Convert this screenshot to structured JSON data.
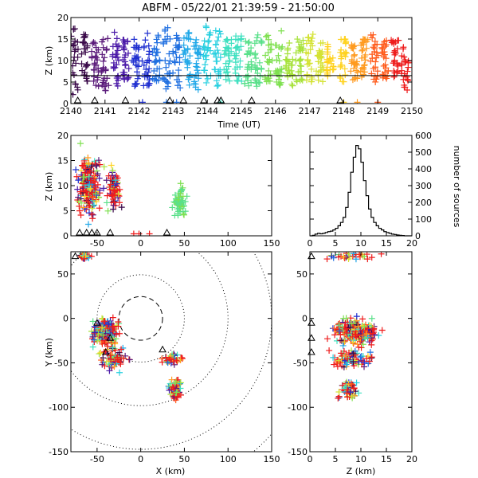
{
  "title": "ABFM - 05/22/01 21:39:59 - 21:50:00",
  "colors": {
    "sequence": [
      "#3b0a4a",
      "#5a1a7a",
      "#4b1aa8",
      "#1f2fd0",
      "#1f6fe0",
      "#21a8e8",
      "#2ad0e0",
      "#3fe0c0",
      "#5ae08a",
      "#7fe050",
      "#a6e23a",
      "#d4e233",
      "#ffd21f",
      "#ff9a1f",
      "#ff5a1a",
      "#ee1c1c"
    ],
    "axis": "#000000",
    "rings": "#000000"
  },
  "chart_data": [
    {
      "id": "time_height",
      "type": "scatter",
      "xlabel": "Time (UT)",
      "ylabel": "Z (km)",
      "xlim": [
        2140,
        2150
      ],
      "ylim": [
        0,
        20
      ],
      "xticks": [
        "2140",
        "2141",
        "2142",
        "2143",
        "2144",
        "2145",
        "2146",
        "2147",
        "2148",
        "2149",
        "2150"
      ],
      "yticks": [
        "0",
        "5",
        "10",
        "15",
        "20"
      ],
      "reference_line_z": 6.5,
      "stations_x": [
        2140.2,
        2140.7,
        2141.6,
        2142.9,
        2143.3,
        2143.9,
        2144.3,
        2144.4,
        2145.3,
        2147.9
      ],
      "columns": [
        {
          "t": 2140.1,
          "zmin": 2,
          "zmax": 18
        },
        {
          "t": 2140.4,
          "zmin": 4,
          "zmax": 17
        },
        {
          "t": 2140.7,
          "zmin": 4,
          "zmax": 15
        },
        {
          "t": 2141.0,
          "zmin": 3,
          "zmax": 16
        },
        {
          "t": 2141.3,
          "zmin": 4,
          "zmax": 17
        },
        {
          "t": 2141.6,
          "zmin": 5,
          "zmax": 16
        },
        {
          "t": 2141.9,
          "zmin": 4,
          "zmax": 15
        },
        {
          "t": 2142.2,
          "zmin": 4,
          "zmax": 17
        },
        {
          "t": 2142.5,
          "zmin": 5,
          "zmax": 16
        },
        {
          "t": 2142.8,
          "zmin": 3,
          "zmax": 18
        },
        {
          "t": 2143.1,
          "zmin": 3,
          "zmax": 16
        },
        {
          "t": 2143.4,
          "zmin": 4,
          "zmax": 17
        },
        {
          "t": 2143.7,
          "zmin": 3,
          "zmax": 15
        },
        {
          "t": 2144.0,
          "zmin": 4,
          "zmax": 18
        },
        {
          "t": 2144.3,
          "zmin": 4,
          "zmax": 17
        },
        {
          "t": 2144.6,
          "zmin": 5,
          "zmax": 15
        },
        {
          "t": 2144.9,
          "zmin": 5,
          "zmax": 16
        },
        {
          "t": 2145.2,
          "zmin": 4,
          "zmax": 15
        },
        {
          "t": 2145.5,
          "zmin": 4,
          "zmax": 17
        },
        {
          "t": 2145.8,
          "zmin": 5,
          "zmax": 16
        },
        {
          "t": 2146.1,
          "zmin": 4,
          "zmax": 17
        },
        {
          "t": 2146.4,
          "zmin": 4,
          "zmax": 15
        },
        {
          "t": 2146.7,
          "zmin": 5,
          "zmax": 15
        },
        {
          "t": 2147.0,
          "zmin": 5,
          "zmax": 17
        },
        {
          "t": 2147.3,
          "zmin": 5,
          "zmax": 15
        },
        {
          "t": 2147.6,
          "zmin": 6,
          "zmax": 14
        },
        {
          "t": 2148.0,
          "zmin": 5,
          "zmax": 15
        },
        {
          "t": 2148.3,
          "zmin": 5,
          "zmax": 14
        },
        {
          "t": 2148.6,
          "zmin": 6,
          "zmax": 15
        },
        {
          "t": 2148.9,
          "zmin": 5,
          "zmax": 16
        },
        {
          "t": 2149.2,
          "zmin": 5,
          "zmax": 15
        },
        {
          "t": 2149.5,
          "zmin": 6,
          "zmax": 15
        },
        {
          "t": 2149.8,
          "zmin": 3,
          "zmax": 14
        }
      ],
      "ground_t": [
        2142.1,
        2142.8,
        2143.1,
        2144.4,
        2148.0,
        2148.4,
        2149.0
      ]
    },
    {
      "id": "x_height",
      "type": "scatter",
      "ylabel": "Z (km)",
      "xlim": [
        -80,
        150
      ],
      "ylim": [
        0,
        20
      ],
      "xticks": [
        "-50",
        "0",
        "50",
        "100",
        "150"
      ],
      "yticks": [
        "0",
        "5",
        "10",
        "15",
        "20"
      ],
      "stations_x": [
        -70,
        -62,
        -56,
        -50,
        -35,
        30
      ],
      "clusters": [
        {
          "x": -60,
          "z": 10,
          "sx": 10,
          "sz": 4,
          "n": 200,
          "hue": "mixed"
        },
        {
          "x": -30,
          "z": 9,
          "sx": 6,
          "sz": 3,
          "n": 80,
          "hue": "mixed"
        },
        {
          "x": 45,
          "z": 7,
          "sx": 6,
          "sz": 2,
          "n": 60,
          "hue": "green"
        }
      ],
      "ground_x": [
        -2,
        10,
        -8
      ]
    },
    {
      "id": "histogram",
      "type": "bar",
      "ylabel": "number of sources",
      "xlim": [
        0,
        20
      ],
      "ylim": [
        0,
        600
      ],
      "xticks": [
        "0",
        "5",
        "10",
        "15",
        "20"
      ],
      "yticks": [
        "0",
        "100",
        "200",
        "300",
        "400",
        "500",
        "600"
      ],
      "bin_width": 0.5,
      "bins_start": [
        0,
        0.5,
        1,
        1.5,
        2,
        2.5,
        3,
        3.5,
        4,
        4.5,
        5,
        5.5,
        6,
        6.5,
        7,
        7.5,
        8,
        8.5,
        9,
        9.5,
        10,
        10.5,
        11,
        11.5,
        12,
        12.5,
        13,
        13.5,
        14,
        14.5,
        15,
        15.5,
        16,
        16.5,
        17,
        17.5,
        18,
        18.5,
        19,
        19.5
      ],
      "values": [
        0,
        3,
        10,
        15,
        12,
        15,
        20,
        25,
        28,
        35,
        45,
        60,
        80,
        110,
        170,
        260,
        380,
        470,
        540,
        520,
        440,
        330,
        240,
        160,
        110,
        80,
        60,
        45,
        35,
        25,
        20,
        15,
        10,
        8,
        5,
        3,
        2,
        0,
        0,
        0
      ]
    },
    {
      "id": "plan_view",
      "type": "scatter",
      "xlabel": "X (km)",
      "ylabel": "Y (km)",
      "xlim": [
        -80,
        150
      ],
      "ylim": [
        -150,
        75
      ],
      "xticks": [
        "-50",
        "0",
        "50",
        "100",
        "150"
      ],
      "yticks": [
        "-150",
        "-100",
        "-50",
        "0",
        "50"
      ],
      "range_rings_km": [
        25,
        50,
        100,
        150,
        200
      ],
      "center_km": [
        0,
        0
      ],
      "stations": [
        {
          "x": -50,
          "y": -5
        },
        {
          "x": -35,
          "y": -22
        },
        {
          "x": -40,
          "y": -38
        },
        {
          "x": -75,
          "y": 70
        },
        {
          "x": 25,
          "y": -35
        }
      ],
      "clusters": [
        {
          "x": -40,
          "y": -15,
          "sx": 12,
          "sy": 12,
          "n": 220
        },
        {
          "x": -30,
          "y": -45,
          "sx": 12,
          "sy": 10,
          "n": 80
        },
        {
          "x": 40,
          "y": -80,
          "sx": 6,
          "sy": 10,
          "n": 60
        },
        {
          "x": 35,
          "y": -45,
          "sx": 8,
          "sy": 4,
          "n": 40
        },
        {
          "x": -65,
          "y": 70,
          "sx": 5,
          "sy": 3,
          "n": 30
        }
      ]
    },
    {
      "id": "height_y",
      "type": "scatter",
      "xlabel": "Z (km)",
      "xlim": [
        0,
        20
      ],
      "ylim": [
        -150,
        75
      ],
      "xticks": [
        "0",
        "5",
        "10",
        "15",
        "20"
      ],
      "yticks": [
        "-150",
        "-100",
        "-50",
        "0",
        "50"
      ],
      "stations_y": [
        70,
        -5,
        -22,
        -38
      ],
      "clusters": [
        {
          "z": 9,
          "y": -15,
          "sz": 3,
          "sy": 10,
          "n": 220
        },
        {
          "z": 8,
          "y": -45,
          "sz": 3,
          "sy": 8,
          "n": 80
        },
        {
          "z": 7.5,
          "y": -80,
          "sz": 1.5,
          "sy": 10,
          "n": 60
        },
        {
          "z": 9,
          "y": 70,
          "sz": 3,
          "sy": 3,
          "n": 30
        }
      ]
    }
  ]
}
